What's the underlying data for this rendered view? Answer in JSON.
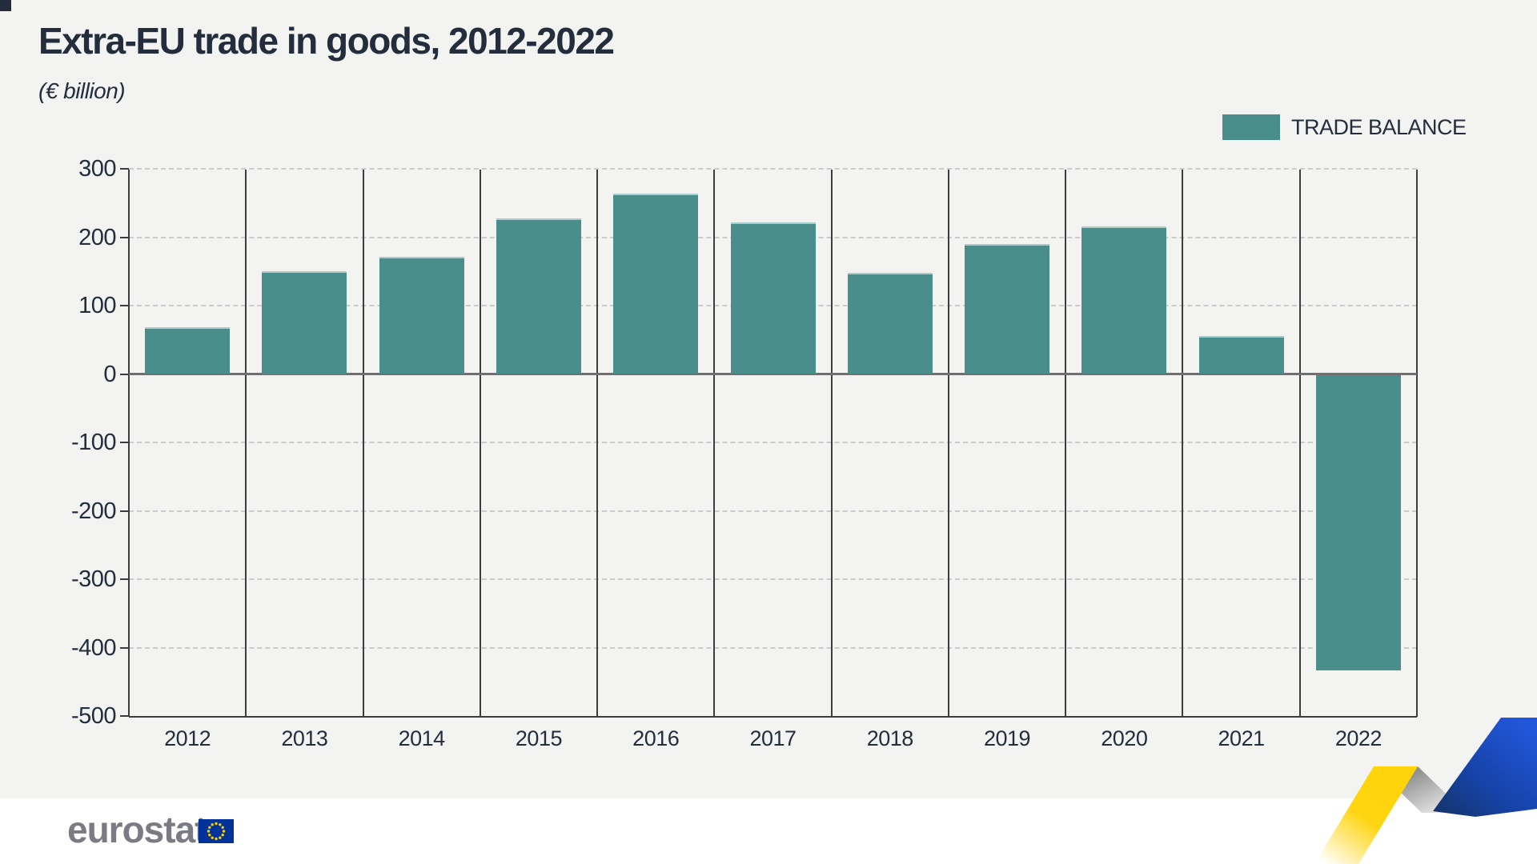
{
  "title": "Extra-EU trade in goods, 2012-2022",
  "subtitle": "(€ billion)",
  "legend": {
    "items": [
      {
        "label": "TRADE BALANCE",
        "color": "#4a8e8b"
      }
    ]
  },
  "footer": {
    "brand": "eurostat",
    "eu_flag_icon": "eu-flag"
  },
  "colors": {
    "background": "#f3f3f2",
    "footer_background": "#ffffff",
    "bar": "#4a8e8b",
    "text": "#232d3c",
    "grid_dashed": "#cbcbcb",
    "axis": "#3d3d3d",
    "zero_line": "#707070",
    "logo_gray": "#7b7b83",
    "eu_blue": "#003399",
    "star_yellow": "#ffcc00",
    "ribbon_yellow": "#ffd40a",
    "ribbon_gray": "#9a9a9a",
    "ribbon_blue": "#1d50cf"
  },
  "chart_data": {
    "type": "bar",
    "title": "Extra-EU trade in goods, 2012-2022",
    "unit": "€ billion",
    "categories": [
      "2012",
      "2013",
      "2014",
      "2015",
      "2016",
      "2017",
      "2018",
      "2019",
      "2020",
      "2021",
      "2022"
    ],
    "series": [
      {
        "name": "TRADE BALANCE",
        "color": "#4a8e8b",
        "values": [
          68,
          150,
          171,
          228,
          264,
          222,
          148,
          190,
          216,
          55,
          -432
        ]
      }
    ],
    "ylim": [
      -500,
      300
    ],
    "ytick_step": 100,
    "y_ticks": [
      300,
      200,
      100,
      0,
      -100,
      -200,
      -300,
      -400,
      -500
    ],
    "grid": true,
    "zero_line": true,
    "legend_position": "top-right",
    "xlabel": "",
    "ylabel": "€ billion"
  }
}
